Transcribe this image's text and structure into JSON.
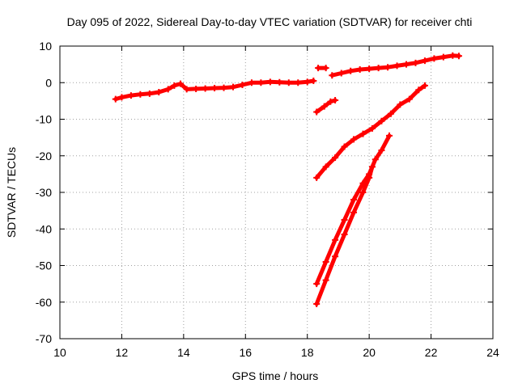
{
  "chart_data": {
    "type": "scatter",
    "title": "Day 095 of 2022, Sidereal Day-to-day VTEC variation (SDTVAR) for receiver chti",
    "xlabel": "GPS time / hours",
    "ylabel": "SDTVAR / TECUs",
    "xlim": [
      10,
      24
    ],
    "ylim": [
      -70,
      10
    ],
    "xticks": [
      10,
      12,
      14,
      16,
      18,
      20,
      22,
      24
    ],
    "yticks": [
      -70,
      -60,
      -50,
      -40,
      -30,
      -20,
      -10,
      0,
      10
    ],
    "grid": true,
    "marker_color": "#ff0000",
    "marker": "plus",
    "series": [
      {
        "points": [
          [
            11.8,
            -4.5
          ],
          [
            12.0,
            -4.0
          ],
          [
            12.3,
            -3.5
          ],
          [
            12.6,
            -3.2
          ],
          [
            12.9,
            -3.0
          ],
          [
            13.2,
            -2.6
          ],
          [
            13.5,
            -1.8
          ],
          [
            13.7,
            -0.8
          ],
          [
            13.9,
            -0.3
          ],
          [
            14.1,
            -1.8
          ],
          [
            14.4,
            -1.7
          ],
          [
            14.7,
            -1.6
          ],
          [
            15.0,
            -1.5
          ],
          [
            15.3,
            -1.4
          ],
          [
            15.6,
            -1.2
          ],
          [
            15.9,
            -0.6
          ],
          [
            16.2,
            0.0
          ],
          [
            16.5,
            0.0
          ],
          [
            16.8,
            0.2
          ],
          [
            17.1,
            0.1
          ],
          [
            17.4,
            0.0
          ],
          [
            17.7,
            0.0
          ],
          [
            18.0,
            0.2
          ],
          [
            18.2,
            0.5
          ]
        ]
      },
      {
        "points": [
          [
            18.35,
            4.0
          ],
          [
            18.6,
            4.0
          ]
        ]
      },
      {
        "points": [
          [
            18.8,
            2.0
          ],
          [
            19.1,
            2.6
          ],
          [
            19.4,
            3.2
          ],
          [
            19.7,
            3.6
          ],
          [
            20.0,
            3.8
          ],
          [
            20.3,
            4.0
          ],
          [
            20.6,
            4.2
          ],
          [
            20.9,
            4.6
          ],
          [
            21.2,
            5.0
          ],
          [
            21.5,
            5.4
          ],
          [
            21.8,
            6.0
          ],
          [
            22.1,
            6.6
          ],
          [
            22.4,
            7.0
          ],
          [
            22.7,
            7.4
          ],
          [
            22.9,
            7.3
          ]
        ]
      },
      {
        "points": [
          [
            18.3,
            -8.0
          ],
          [
            18.55,
            -6.5
          ],
          [
            18.75,
            -5.2
          ],
          [
            18.9,
            -4.8
          ]
        ]
      },
      {
        "points": [
          [
            18.3,
            -26.0
          ],
          [
            18.6,
            -23.0
          ],
          [
            18.9,
            -20.5
          ],
          [
            19.2,
            -17.5
          ],
          [
            19.5,
            -15.5
          ],
          [
            19.8,
            -14.0
          ],
          [
            20.1,
            -12.5
          ],
          [
            20.4,
            -10.5
          ],
          [
            20.7,
            -8.5
          ],
          [
            21.0,
            -6.0
          ],
          [
            21.3,
            -4.5
          ],
          [
            21.6,
            -2.0
          ],
          [
            21.8,
            -0.8
          ]
        ]
      },
      {
        "points": [
          [
            18.3,
            -55.0
          ],
          [
            18.6,
            -49.0
          ],
          [
            18.9,
            -43.0
          ],
          [
            19.2,
            -37.5
          ],
          [
            19.5,
            -32.0
          ],
          [
            19.8,
            -27.5
          ],
          [
            20.0,
            -25.0
          ],
          [
            20.2,
            -21.0
          ],
          [
            20.4,
            -18.5
          ],
          [
            20.65,
            -14.5
          ]
        ]
      },
      {
        "points": [
          [
            18.3,
            -60.5
          ],
          [
            18.6,
            -54.0
          ],
          [
            18.9,
            -47.5
          ],
          [
            19.2,
            -41.5
          ],
          [
            19.5,
            -35.5
          ],
          [
            19.8,
            -30.0
          ],
          [
            20.0,
            -26.0
          ],
          [
            20.1,
            -23.0
          ]
        ]
      }
    ]
  }
}
